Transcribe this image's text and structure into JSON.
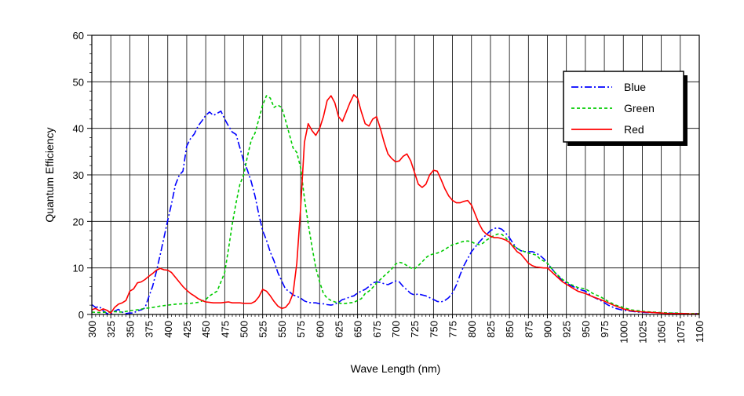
{
  "chart_data": {
    "type": "line",
    "title": "",
    "xlabel": "Wave Length (nm)",
    "ylabel": "Quantum Efficiency",
    "xlim": [
      300,
      1100
    ],
    "ylim": [
      0,
      60
    ],
    "x_tick_labels": [
      "300",
      "325",
      "350",
      "375",
      "400",
      "425",
      "450",
      "475",
      "500",
      "525",
      "550",
      "575",
      "600",
      "625",
      "650",
      "675",
      "700",
      "725",
      "750",
      "775",
      "800",
      "825",
      "850",
      "875",
      "900",
      "925",
      "950",
      "975",
      "1000",
      "1025",
      "1050",
      "1075",
      "1100"
    ],
    "y_tick_labels": [
      "0",
      "10",
      "20",
      "30",
      "40",
      "50",
      "60"
    ],
    "grid": true,
    "legend_position": "top-right",
    "series": [
      {
        "name": "Blue",
        "color": "#0000ff",
        "dash": "dash-dot",
        "x": [
          300,
          305,
          310,
          315,
          320,
          325,
          330,
          335,
          340,
          345,
          350,
          355,
          360,
          365,
          370,
          375,
          380,
          385,
          390,
          395,
          400,
          405,
          410,
          415,
          420,
          425,
          430,
          435,
          440,
          445,
          450,
          455,
          460,
          465,
          470,
          475,
          480,
          485,
          490,
          495,
          500,
          505,
          510,
          515,
          520,
          525,
          530,
          535,
          540,
          545,
          550,
          555,
          560,
          565,
          570,
          575,
          580,
          585,
          590,
          595,
          600,
          605,
          610,
          615,
          620,
          625,
          630,
          635,
          640,
          645,
          650,
          655,
          660,
          665,
          670,
          675,
          680,
          685,
          690,
          695,
          700,
          705,
          710,
          715,
          720,
          725,
          730,
          735,
          740,
          745,
          750,
          755,
          760,
          765,
          770,
          775,
          780,
          785,
          790,
          795,
          800,
          805,
          810,
          815,
          820,
          825,
          830,
          835,
          840,
          845,
          850,
          855,
          860,
          865,
          870,
          875,
          880,
          885,
          890,
          895,
          900,
          910,
          920,
          930,
          940,
          950,
          960,
          970,
          980,
          990,
          1000,
          1010,
          1020,
          1030,
          1040,
          1050,
          1060,
          1070,
          1080,
          1090,
          1100
        ],
        "y": [
          2.1,
          1.5,
          1.7,
          0.8,
          0.2,
          0.1,
          0.7,
          1.1,
          0.5,
          0.2,
          0.3,
          0.3,
          0.8,
          1.0,
          1.4,
          3.8,
          6.0,
          9.2,
          12.8,
          16.5,
          20.3,
          23.8,
          27.8,
          29.9,
          30.8,
          36.2,
          37.8,
          38.8,
          40.5,
          41.6,
          42.8,
          43.5,
          42.8,
          43.2,
          43.7,
          42.0,
          40.5,
          39.2,
          38.7,
          35.8,
          33.0,
          31.0,
          28.5,
          25.4,
          21.4,
          18.0,
          16.0,
          13.4,
          11.5,
          9.0,
          7.2,
          5.5,
          4.9,
          4.2,
          3.9,
          3.5,
          2.9,
          2.6,
          2.5,
          2.5,
          2.3,
          2.3,
          2.1,
          2.0,
          2.2,
          2.6,
          3.2,
          3.4,
          3.8,
          4.0,
          4.6,
          5.0,
          5.4,
          6.0,
          6.8,
          7.0,
          6.9,
          6.6,
          6.4,
          6.8,
          7.2,
          7.0,
          6.0,
          5.3,
          4.5,
          4.2,
          4.4,
          4.2,
          4.0,
          3.6,
          3.2,
          2.8,
          2.7,
          3.0,
          3.6,
          4.6,
          6.3,
          8.5,
          10.5,
          12.0,
          13.5,
          14.5,
          15.5,
          16.4,
          17.2,
          18.0,
          18.5,
          18.6,
          18.3,
          17.5,
          16.5,
          15.2,
          14.2,
          13.7,
          13.5,
          13.5,
          13.5,
          13.2,
          12.7,
          12.0,
          11.0,
          9.0,
          7.2,
          6.3,
          5.5,
          5.0,
          3.8,
          3.0,
          2.0,
          1.3,
          0.9,
          0.7,
          0.5,
          0.4,
          0.4,
          0.3,
          0.3,
          0.2,
          0.2,
          0.2,
          0.2
        ]
      },
      {
        "name": "Green",
        "color": "#00cc00",
        "dash": "dashed",
        "x": [
          300,
          310,
          320,
          330,
          340,
          350,
          360,
          370,
          380,
          390,
          400,
          410,
          420,
          430,
          440,
          450,
          455,
          460,
          465,
          470,
          475,
          480,
          485,
          490,
          495,
          500,
          505,
          510,
          515,
          520,
          525,
          530,
          535,
          540,
          545,
          550,
          555,
          560,
          565,
          570,
          575,
          580,
          585,
          590,
          595,
          600,
          605,
          610,
          615,
          620,
          625,
          630,
          635,
          640,
          645,
          650,
          655,
          660,
          665,
          670,
          675,
          680,
          685,
          690,
          695,
          700,
          705,
          710,
          715,
          720,
          725,
          730,
          735,
          740,
          745,
          750,
          755,
          760,
          765,
          770,
          775,
          780,
          785,
          790,
          795,
          800,
          805,
          810,
          815,
          820,
          825,
          830,
          835,
          840,
          845,
          850,
          855,
          860,
          865,
          870,
          875,
          880,
          885,
          890,
          895,
          900,
          910,
          920,
          930,
          940,
          950,
          960,
          970,
          980,
          990,
          1000,
          1010,
          1020,
          1030,
          1040,
          1050,
          1060,
          1070,
          1080,
          1090,
          1100
        ],
        "y": [
          0.5,
          0.4,
          0.5,
          0.6,
          0.5,
          0.8,
          1.0,
          1.3,
          1.5,
          1.8,
          2.0,
          2.2,
          2.3,
          2.4,
          2.6,
          3.2,
          4.0,
          4.5,
          5.0,
          7.0,
          9.0,
          14.0,
          19.5,
          24.0,
          28.0,
          30.0,
          34.0,
          37.5,
          39.0,
          42.0,
          45.0,
          47.0,
          46.5,
          44.5,
          45.0,
          44.5,
          41.8,
          38.8,
          35.8,
          34.8,
          31.5,
          25.0,
          19.5,
          14.5,
          10.0,
          7.0,
          4.5,
          3.5,
          3.0,
          2.7,
          2.5,
          2.3,
          2.4,
          2.5,
          2.6,
          3.0,
          3.4,
          4.5,
          5.0,
          5.8,
          6.8,
          7.5,
          8.3,
          9.0,
          9.8,
          10.8,
          11.2,
          11.0,
          10.5,
          10.0,
          9.8,
          10.5,
          11.3,
          12.2,
          12.8,
          13.0,
          13.2,
          13.5,
          14.0,
          14.5,
          15.0,
          15.2,
          15.5,
          15.7,
          15.8,
          15.6,
          15.2,
          15.0,
          15.3,
          16.0,
          16.5,
          17.0,
          17.3,
          17.2,
          16.5,
          15.5,
          14.8,
          14.2,
          13.8,
          13.5,
          13.2,
          13.0,
          12.8,
          12.0,
          11.5,
          11.0,
          9.0,
          7.5,
          6.5,
          5.8,
          5.5,
          4.5,
          3.8,
          2.8,
          2.0,
          1.5,
          1.0,
          0.8,
          0.6,
          0.5,
          0.4,
          0.3,
          0.3,
          0.2,
          0.2,
          0.2
        ]
      },
      {
        "name": "Red",
        "color": "#ff0000",
        "dash": "solid",
        "x": [
          300,
          305,
          310,
          315,
          320,
          325,
          330,
          335,
          340,
          345,
          350,
          355,
          360,
          365,
          370,
          375,
          380,
          385,
          390,
          395,
          400,
          405,
          410,
          415,
          420,
          425,
          430,
          435,
          440,
          445,
          450,
          455,
          460,
          465,
          470,
          475,
          480,
          485,
          490,
          495,
          500,
          505,
          510,
          515,
          520,
          525,
          530,
          535,
          540,
          545,
          550,
          555,
          560,
          565,
          570,
          575,
          580,
          585,
          590,
          595,
          600,
          605,
          610,
          615,
          620,
          625,
          630,
          635,
          640,
          645,
          650,
          655,
          660,
          665,
          670,
          675,
          680,
          685,
          690,
          695,
          700,
          705,
          710,
          715,
          720,
          725,
          730,
          735,
          740,
          745,
          750,
          755,
          760,
          765,
          770,
          775,
          780,
          785,
          790,
          795,
          800,
          805,
          810,
          815,
          820,
          825,
          830,
          835,
          840,
          845,
          850,
          855,
          860,
          865,
          870,
          875,
          880,
          885,
          890,
          895,
          900,
          910,
          920,
          930,
          940,
          950,
          960,
          970,
          980,
          990,
          1000,
          1010,
          1020,
          1030,
          1040,
          1050,
          1060,
          1070,
          1080,
          1090,
          1100
        ],
        "y": [
          1.0,
          1.3,
          0.8,
          1.2,
          0.9,
          0.3,
          1.5,
          2.2,
          2.5,
          3.0,
          5.0,
          5.5,
          6.8,
          7.0,
          7.5,
          8.2,
          8.8,
          9.5,
          9.9,
          9.6,
          9.5,
          9.0,
          8.0,
          7.0,
          6.0,
          5.2,
          4.5,
          4.0,
          3.4,
          3.0,
          2.7,
          2.6,
          2.5,
          2.5,
          2.5,
          2.6,
          2.7,
          2.5,
          2.5,
          2.5,
          2.4,
          2.4,
          2.4,
          2.8,
          3.8,
          5.4,
          5.0,
          4.0,
          2.8,
          1.8,
          1.3,
          1.5,
          2.5,
          4.5,
          11.0,
          23.0,
          37.0,
          41.0,
          39.5,
          38.5,
          40.0,
          42.5,
          46.0,
          47.0,
          45.5,
          42.5,
          41.5,
          43.5,
          45.5,
          47.2,
          46.5,
          43.5,
          41.0,
          40.5,
          42.0,
          42.5,
          40.0,
          37.0,
          34.5,
          33.5,
          32.8,
          33.0,
          34.0,
          34.5,
          33.0,
          30.5,
          28.0,
          27.3,
          28.0,
          30.0,
          31.0,
          30.8,
          29.0,
          27.0,
          25.5,
          24.5,
          24.0,
          24.0,
          24.3,
          24.5,
          23.5,
          21.5,
          19.5,
          18.0,
          17.2,
          16.8,
          16.5,
          16.5,
          16.3,
          16.0,
          15.5,
          14.5,
          13.5,
          13.0,
          12.0,
          11.0,
          10.5,
          10.2,
          10.1,
          10.0,
          10.0,
          8.5,
          7.0,
          6.0,
          5.0,
          4.5,
          3.8,
          3.2,
          2.5,
          1.8,
          1.2,
          0.8,
          0.6,
          0.5,
          0.4,
          0.3,
          0.2,
          0.2,
          0.2,
          0.1,
          0.1
        ]
      }
    ]
  }
}
